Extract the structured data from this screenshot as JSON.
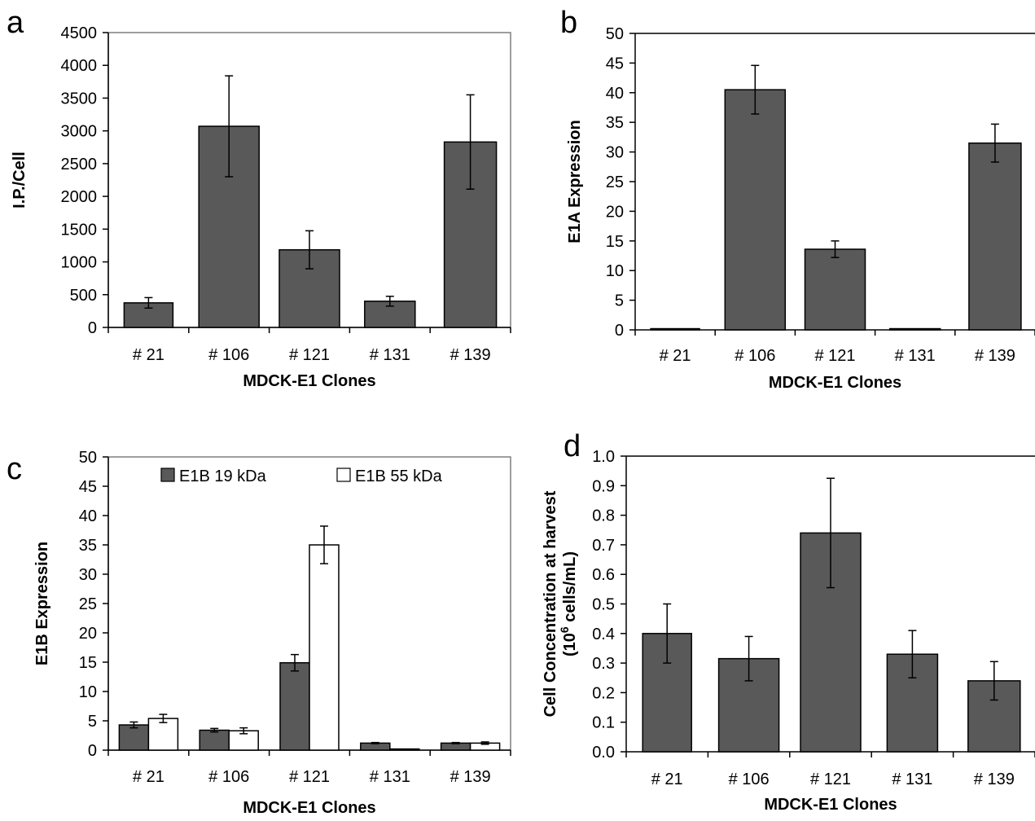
{
  "colors": {
    "dark_bar": "#595959",
    "light_bar": "#ffffff",
    "axis": "#000000",
    "frame": "#7f7f7f"
  },
  "chart_data": [
    {
      "panel": "a",
      "type": "bar",
      "categories": [
        "# 21",
        "# 106",
        "# 121",
        "# 131",
        "# 139"
      ],
      "xlabel": "MDCK-E1 Clones",
      "ylabel": "I.P./Cell",
      "ylim": [
        0,
        4500
      ],
      "yticks": [
        0,
        500,
        1000,
        1500,
        2000,
        2500,
        3000,
        3500,
        4000,
        4500
      ],
      "ytick_labels": [
        "0",
        "500",
        "1000",
        "1500",
        "2000",
        "2500",
        "3000",
        "3500",
        "4000",
        "4500"
      ],
      "grid": false,
      "series": [
        {
          "values": [
            375,
            3070,
            1185,
            400,
            2830
          ],
          "errors": [
            80,
            770,
            290,
            75,
            720
          ],
          "color": "dark"
        }
      ]
    },
    {
      "panel": "b",
      "type": "bar",
      "categories": [
        "# 21",
        "# 106",
        "# 121",
        "# 131",
        "# 139"
      ],
      "xlabel": "MDCK-E1 Clones",
      "ylabel": "E1A Expression",
      "ylim": [
        0,
        50
      ],
      "yticks": [
        0,
        5,
        10,
        15,
        20,
        25,
        30,
        35,
        40,
        45,
        50
      ],
      "ytick_labels": [
        "0",
        "5",
        "10",
        "15",
        "20",
        "25",
        "30",
        "35",
        "40",
        "45",
        "50"
      ],
      "grid": false,
      "series": [
        {
          "values": [
            0.2,
            40.5,
            13.6,
            0.2,
            31.5
          ],
          "errors": [
            0,
            4.1,
            1.4,
            0,
            3.2
          ],
          "color": "dark"
        }
      ]
    },
    {
      "panel": "c",
      "type": "bar",
      "categories": [
        "# 21",
        "# 106",
        "# 121",
        "# 131",
        "# 139"
      ],
      "xlabel": "MDCK-E1 Clones",
      "ylabel": "E1B Expression",
      "ylim": [
        0,
        50
      ],
      "yticks": [
        0,
        5,
        10,
        15,
        20,
        25,
        30,
        35,
        40,
        45,
        50
      ],
      "ytick_labels": [
        "0",
        "5",
        "10",
        "15",
        "20",
        "25",
        "30",
        "35",
        "40",
        "45",
        "50"
      ],
      "grid": false,
      "legend_position": "top",
      "series": [
        {
          "name": "E1B 19 kDa",
          "values": [
            4.3,
            3.4,
            14.9,
            1.2,
            1.2
          ],
          "errors": [
            0.5,
            0.3,
            1.4,
            0.1,
            0.1
          ],
          "color": "dark"
        },
        {
          "name": "E1B 55 kDa",
          "values": [
            5.4,
            3.3,
            35.0,
            0.2,
            1.2
          ],
          "errors": [
            0.7,
            0.5,
            3.2,
            0,
            0.2
          ],
          "color": "light"
        }
      ]
    },
    {
      "panel": "d",
      "type": "bar",
      "categories": [
        "# 21",
        "# 106",
        "# 121",
        "# 131",
        "# 139"
      ],
      "xlabel": "MDCK-E1 Clones",
      "ylabel": "Cell Concentration  at harvest",
      "ylabel_line2_pre": "(10",
      "ylabel_line2_sup": "6",
      "ylabel_line2_post": " cells/mL)",
      "ylim": [
        0,
        1.0
      ],
      "yticks": [
        0,
        0.1,
        0.2,
        0.3,
        0.4,
        0.5,
        0.6,
        0.7,
        0.8,
        0.9,
        1.0
      ],
      "ytick_labels": [
        "0.0",
        "0.1",
        "0.2",
        "0.3",
        "0.4",
        "0.5",
        "0.6",
        "0.7",
        "0.8",
        "0.9",
        "1.0"
      ],
      "grid": false,
      "series": [
        {
          "values": [
            0.4,
            0.315,
            0.74,
            0.33,
            0.24
          ],
          "errors": [
            0.1,
            0.075,
            0.185,
            0.08,
            0.065
          ],
          "color": "dark"
        }
      ]
    }
  ]
}
